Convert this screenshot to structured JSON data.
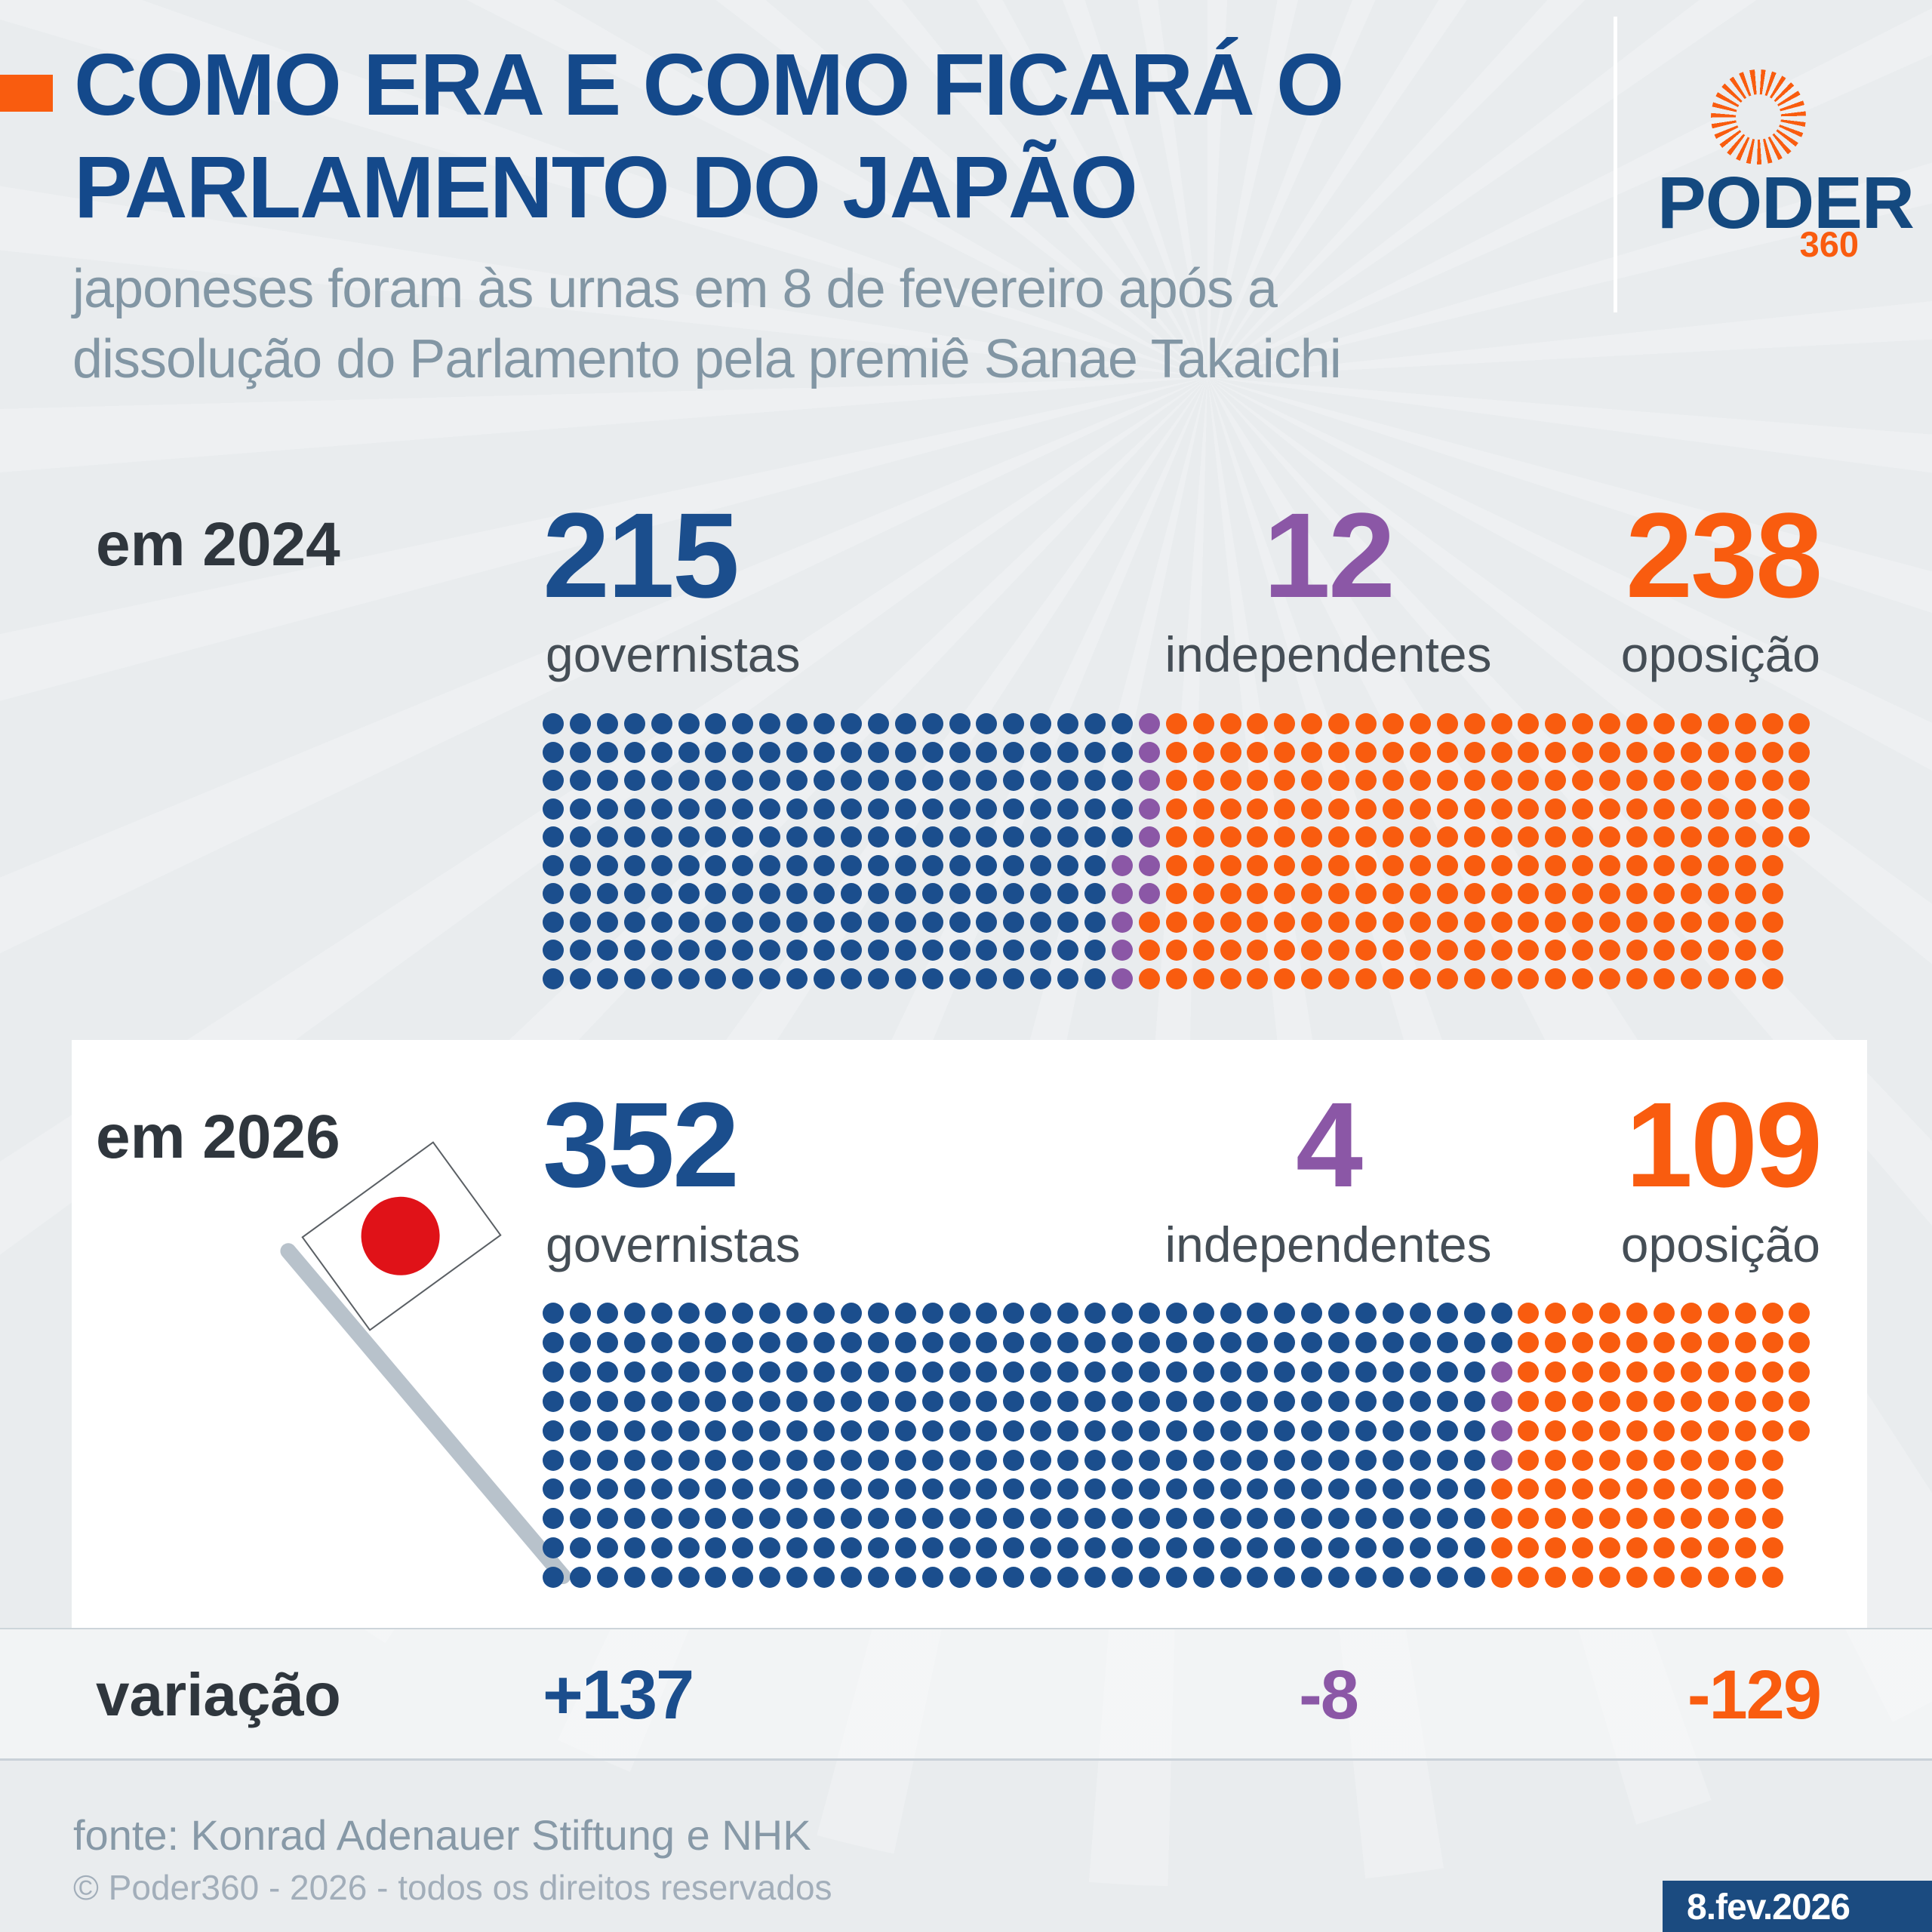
{
  "header": {
    "title_line1": "COMO ERA E COMO FICARÁ O",
    "title_line2": "PARLAMENTO DO JAPÃO",
    "subtitle_line1": "japoneses foram às urnas em 8 de fevereiro após a",
    "subtitle_line2": "dissolução do Parlamento pela premiê Sanae Takaichi"
  },
  "logo": {
    "brand": "PODER",
    "suffix": "360",
    "icon": "sunburst-icon"
  },
  "sections": {
    "2024": {
      "year_label": "em 2024",
      "gov_value": "215",
      "gov_label": "governistas",
      "ind_value": "12",
      "ind_label": "independentes",
      "opp_value": "238",
      "opp_label": "oposição"
    },
    "2026": {
      "year_label": "em 2026",
      "gov_value": "352",
      "gov_label": "governistas",
      "ind_value": "4",
      "ind_label": "independentes",
      "opp_value": "109",
      "opp_label": "oposição",
      "flag_icon": "japan-flag-icon"
    }
  },
  "variation": {
    "label": "variação",
    "gov": "+137",
    "ind": "-8",
    "opp": "-129"
  },
  "footer": {
    "source": "fonte: Konrad Adenauer Stiftung e NHK",
    "copyright": "© Poder360 - 2026 - todos os direitos reservados",
    "date_badge": "8.fev.2026"
  },
  "colors": {
    "background": "#e9ecee",
    "card": "#ffffff",
    "title_blue": "#14498b",
    "government_blue": "#1b4e8d",
    "independent_purple": "#8b57a6",
    "opposition_orange": "#f95c0f",
    "dark_text": "#2f363d",
    "label_gray": "#454e56",
    "subtitle_gray": "#8296a4",
    "badge_blue": "#1b4b80",
    "flag_red": "#e01218",
    "pole_gray": "#b8c2cb"
  },
  "chart_data": [
    {
      "id": "2024",
      "type": "waffle",
      "title": "em 2024",
      "rows": 10,
      "cols": 47,
      "last_col_rows": 5,
      "fill_order": "column-major",
      "total_seats": 465,
      "series": [
        {
          "name": "governistas",
          "value": 215,
          "color": "#1b4e8d"
        },
        {
          "name": "independentes",
          "value": 12,
          "color": "#8b57a6"
        },
        {
          "name": "oposição",
          "value": 238,
          "color": "#f95c0f"
        }
      ]
    },
    {
      "id": "2026",
      "type": "waffle",
      "title": "em 2026",
      "rows": 10,
      "cols": 47,
      "last_col_rows": 5,
      "fill_order": "column-major",
      "total_seats": 465,
      "series": [
        {
          "name": "governistas",
          "value": 352,
          "color": "#1b4e8d"
        },
        {
          "name": "independentes",
          "value": 4,
          "color": "#8b57a6"
        },
        {
          "name": "oposição",
          "value": 109,
          "color": "#f95c0f"
        }
      ]
    }
  ]
}
